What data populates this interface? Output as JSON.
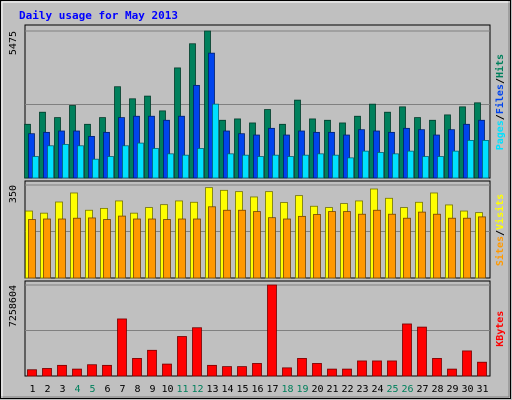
{
  "chart_data": {
    "type": "bar",
    "title": "Daily usage for May 2013",
    "days": [
      "1",
      "2",
      "3",
      "4",
      "5",
      "6",
      "7",
      "8",
      "9",
      "10",
      "11",
      "12",
      "13",
      "14",
      "15",
      "16",
      "17",
      "18",
      "19",
      "20",
      "21",
      "22",
      "23",
      "24",
      "25",
      "26",
      "27",
      "28",
      "29",
      "30",
      "31"
    ],
    "weekend_days": [
      4,
      5,
      11,
      12,
      18,
      19,
      25,
      26
    ],
    "panels": [
      {
        "id": "hits-files-pages",
        "ymax_label": "5475",
        "ymax": 5475,
        "legend": [
          "Pages",
          "/",
          "Files",
          "/",
          "Hits"
        ],
        "legend_colors": [
          "#00e0ff",
          "#000000",
          "#0044ee",
          "#000000",
          "#00805c"
        ],
        "series": [
          {
            "name": "Hits",
            "color": "#00805c",
            "values": [
              2000,
              2450,
              2250,
              2700,
              2000,
              2250,
              3400,
              2950,
              3050,
              2500,
              4100,
              5000,
              5475,
              2150,
              2200,
              2050,
              2550,
              2000,
              2900,
              2200,
              2150,
              2050,
              2300,
              2750,
              2450,
              2650,
              2250,
              2150,
              2350,
              2650,
              2800
            ]
          },
          {
            "name": "Files",
            "color": "#0044ee",
            "values": [
              1650,
              1700,
              1750,
              1750,
              1550,
              1700,
              2250,
              2300,
              2300,
              2150,
              2300,
              3450,
              4650,
              1750,
              1650,
              1600,
              1850,
              1600,
              1750,
              1700,
              1700,
              1600,
              1800,
              1750,
              1700,
              1850,
              1800,
              1600,
              1800,
              2000,
              2150
            ]
          },
          {
            "name": "Pages",
            "color": "#00e0ff",
            "values": [
              800,
              1200,
              1250,
              1200,
              700,
              800,
              1200,
              1300,
              1100,
              900,
              850,
              1100,
              2750,
              900,
              850,
              800,
              850,
              800,
              850,
              900,
              850,
              750,
              1000,
              950,
              900,
              1000,
              800,
              800,
              1000,
              1400,
              1400
            ]
          }
        ]
      },
      {
        "id": "visits-sites",
        "ymax_label": "350",
        "ymax": 350,
        "legend": [
          "Sites",
          "/",
          "Visits"
        ],
        "legend_colors": [
          "#ff9900",
          "#000000",
          "#ffff00"
        ],
        "series": [
          {
            "name": "Visits",
            "color": "#ffff00",
            "values": [
              252,
              244,
              286,
              320,
              255,
              262,
              290,
              244,
              265,
              276,
              290,
              285,
              340,
              330,
              325,
              305,
              325,
              284,
              310,
              270,
              265,
              280,
              290,
              335,
              300,
              265,
              285,
              320,
              275,
              252,
              246
            ]
          },
          {
            "name": "Sites",
            "color": "#ff9900",
            "values": [
              220,
              222,
              222,
              225,
              226,
              220,
              233,
              222,
              222,
              220,
              222,
              222,
              268,
              255,
              255,
              250,
              227,
              222,
              232,
              239,
              250,
              250,
              240,
              255,
              240,
              225,
              248,
              240,
              225,
              225,
              230
            ]
          }
        ]
      },
      {
        "id": "kbytes",
        "ymax_label": "7258604",
        "ymax": 7258604,
        "legend": [
          "KBytes"
        ],
        "legend_colors": [
          "#ff0000"
        ],
        "series": [
          {
            "name": "KBytes",
            "color": "#ff0000",
            "values": [
              500000,
              600000,
              850000,
              550000,
              900000,
              850000,
              4550000,
              1400000,
              2050000,
              950000,
              3150000,
              3850000,
              850000,
              750000,
              750000,
              1000000,
              7258604,
              650000,
              1400000,
              1000000,
              550000,
              550000,
              1200000,
              1200000,
              1200000,
              4150000,
              3900000,
              1400000,
              550000,
              2000000,
              1100000
            ]
          }
        ]
      }
    ]
  }
}
